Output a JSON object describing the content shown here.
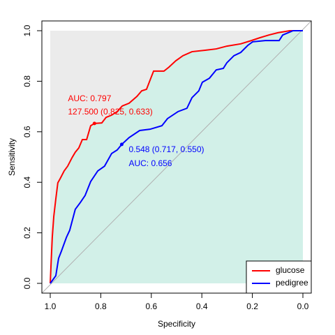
{
  "chart_data": {
    "type": "roc",
    "xlabel": "Specificity",
    "ylabel": "Sensitivity",
    "xlim": [
      1.0,
      0.0
    ],
    "ylim": [
      0.0,
      1.0
    ],
    "xticks": [
      {
        "value": 1.0,
        "label": "1.0"
      },
      {
        "value": 0.8,
        "label": "0.8"
      },
      {
        "value": 0.6,
        "label": "0.6"
      },
      {
        "value": 0.4,
        "label": "0.4"
      },
      {
        "value": 0.2,
        "label": "0.2"
      },
      {
        "value": 0.0,
        "label": "0.0"
      }
    ],
    "yticks": [
      {
        "value": 0.0,
        "label": "0.0"
      },
      {
        "value": 0.2,
        "label": "0.2"
      },
      {
        "value": 0.4,
        "label": "0.4"
      },
      {
        "value": 0.6,
        "label": "0.6"
      },
      {
        "value": 0.8,
        "label": "0.8"
      },
      {
        "value": 1.0,
        "label": "1.0"
      }
    ],
    "legend": "bottom-right",
    "series": [
      {
        "name": "glucose",
        "color": "#ff0000",
        "x": [
          1.0,
          0.997,
          0.992,
          0.986,
          0.978,
          0.97,
          0.961,
          0.945,
          0.931,
          0.914,
          0.901,
          0.887,
          0.873,
          0.856,
          0.84,
          0.825,
          0.796,
          0.779,
          0.757,
          0.735,
          0.715,
          0.688,
          0.657,
          0.638,
          0.619,
          0.602,
          0.591,
          0.55,
          0.53,
          0.503,
          0.475,
          0.439,
          0.384,
          0.343,
          0.301,
          0.246,
          0.204,
          0.171,
          0.135,
          0.099,
          0.052,
          0.0
        ],
        "values": [
          0.0,
          0.072,
          0.182,
          0.265,
          0.334,
          0.398,
          0.414,
          0.445,
          0.464,
          0.497,
          0.519,
          0.536,
          0.569,
          0.569,
          0.624,
          0.633,
          0.635,
          0.657,
          0.666,
          0.68,
          0.702,
          0.713,
          0.74,
          0.762,
          0.768,
          0.812,
          0.84,
          0.84,
          0.856,
          0.881,
          0.901,
          0.917,
          0.923,
          0.928,
          0.939,
          0.948,
          0.961,
          0.972,
          0.983,
          0.992,
          1.0,
          1.0
        ],
        "threshold": {
          "x": 0.825,
          "y": 0.633,
          "label": "127.500 (0.825, 0.633)"
        },
        "auc_label": "AUC: 0.797"
      },
      {
        "name": "pedigree",
        "color": "#0000ff",
        "x": [
          1.0,
          0.978,
          0.967,
          0.956,
          0.936,
          0.923,
          0.901,
          0.881,
          0.862,
          0.84,
          0.812,
          0.785,
          0.757,
          0.735,
          0.717,
          0.688,
          0.646,
          0.605,
          0.558,
          0.536,
          0.494,
          0.459,
          0.439,
          0.412,
          0.398,
          0.37,
          0.343,
          0.315,
          0.301,
          0.273,
          0.246,
          0.218,
          0.199,
          0.149,
          0.094,
          0.08,
          0.039,
          0.0
        ],
        "values": [
          0.0,
          0.03,
          0.099,
          0.127,
          0.182,
          0.21,
          0.293,
          0.32,
          0.348,
          0.403,
          0.445,
          0.464,
          0.514,
          0.528,
          0.55,
          0.577,
          0.605,
          0.61,
          0.624,
          0.652,
          0.68,
          0.693,
          0.735,
          0.762,
          0.796,
          0.812,
          0.845,
          0.851,
          0.873,
          0.901,
          0.914,
          0.942,
          0.956,
          0.961,
          0.961,
          0.983,
          1.0,
          1.0
        ],
        "threshold": {
          "x": 0.717,
          "y": 0.55,
          "label": "0.548 (0.717, 0.550)"
        },
        "auc_label": "AUC: 0.656"
      }
    ]
  }
}
